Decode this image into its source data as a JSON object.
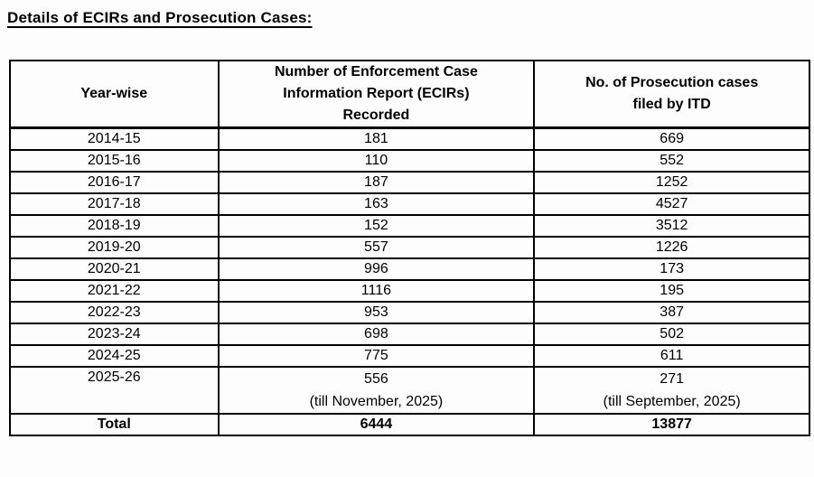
{
  "title": "Details of ECIRs and Prosecution Cases:",
  "table": {
    "headers": [
      "Year-wise",
      "Number of Enforcement Case\nInformation Report (ECIRs)\nRecorded",
      "No. of Prosecution cases\nfiled by ITD"
    ],
    "rows": [
      {
        "year": "2014-15",
        "ecir": "181",
        "prosecution": "669"
      },
      {
        "year": "2015-16",
        "ecir": "110",
        "prosecution": "552"
      },
      {
        "year": "2016-17",
        "ecir": "187",
        "prosecution": "1252"
      },
      {
        "year": "2017-18",
        "ecir": "163",
        "prosecution": "4527"
      },
      {
        "year": "2018-19",
        "ecir": "152",
        "prosecution": "3512"
      },
      {
        "year": "2019-20",
        "ecir": "557",
        "prosecution": "1226"
      },
      {
        "year": "2020-21",
        "ecir": "996",
        "prosecution": "173"
      },
      {
        "year": "2021-22",
        "ecir": "1116",
        "prosecution": "195"
      },
      {
        "year": "2022-23",
        "ecir": "953",
        "prosecution": "387"
      },
      {
        "year": "2023-24",
        "ecir": "698",
        "prosecution": "502"
      },
      {
        "year": "2024-25",
        "ecir": "775",
        "prosecution": "611"
      },
      {
        "year": "2025-26",
        "ecir": "556",
        "ecir_note": "(till November, 2025)",
        "prosecution": "271",
        "prosecution_note": "(till September, 2025)"
      }
    ],
    "total": {
      "label": "Total",
      "ecir": "6444",
      "prosecution": "13877"
    }
  },
  "chart_data": {
    "type": "table",
    "title": "Details of ECIRs and Prosecution Cases",
    "categories": [
      "2014-15",
      "2015-16",
      "2016-17",
      "2017-18",
      "2018-19",
      "2019-20",
      "2020-21",
      "2021-22",
      "2022-23",
      "2023-24",
      "2024-25",
      "2025-26"
    ],
    "series": [
      {
        "name": "Number of Enforcement Case Information Report (ECIRs) Recorded",
        "values": [
          181,
          110,
          187,
          163,
          152,
          557,
          996,
          1116,
          953,
          698,
          775,
          556
        ],
        "total": 6444,
        "note_last": "till November, 2025"
      },
      {
        "name": "No. of Prosecution cases filed by ITD",
        "values": [
          669,
          552,
          1252,
          4527,
          3512,
          1226,
          173,
          195,
          387,
          502,
          611,
          271
        ],
        "total": 13877,
        "note_last": "till September, 2025"
      }
    ]
  }
}
